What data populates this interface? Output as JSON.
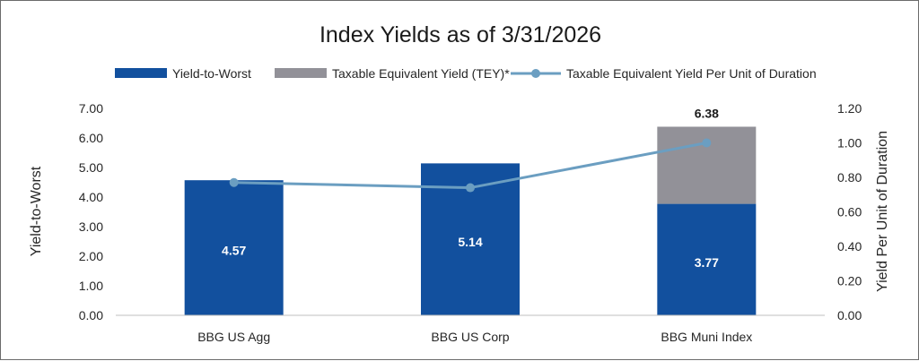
{
  "chart_data": {
    "type": "bar",
    "stacked": true,
    "title": "Index Yields as of 3/31/2026",
    "categories": [
      "BBG US Agg",
      "BBG US Corp",
      "BBG Muni Index"
    ],
    "series": [
      {
        "name": "Yield-to-Worst",
        "type": "bar",
        "axis": "left",
        "color": "#12509e",
        "values": [
          4.57,
          5.14,
          3.77
        ],
        "labels": [
          "4.57",
          "5.14",
          "3.77"
        ]
      },
      {
        "name": "Taxable Equivalent Yield (TEY)*",
        "type": "bar",
        "axis": "left",
        "color": "#929198",
        "values": [
          0,
          0,
          2.61
        ],
        "stack_total_labels": [
          "",
          "",
          "6.38"
        ]
      },
      {
        "name": "Taxable Equivalent Yield Per Unit of Duration",
        "type": "line",
        "axis": "right",
        "color": "#6b9ec1",
        "values": [
          0.77,
          0.74,
          1.0
        ]
      }
    ],
    "y_left": {
      "label": "Yield-to-Worst",
      "min": 0,
      "max": 7,
      "ticks": [
        "0.00",
        "1.00",
        "2.00",
        "3.00",
        "4.00",
        "5.00",
        "6.00",
        "7.00"
      ]
    },
    "y_right": {
      "label": "Yield Per Unit of Duration",
      "min": 0,
      "max": 1.2,
      "ticks": [
        "0.00",
        "0.20",
        "0.40",
        "0.60",
        "0.80",
        "1.00",
        "1.20"
      ]
    },
    "grid": false,
    "legend_position": "top"
  }
}
